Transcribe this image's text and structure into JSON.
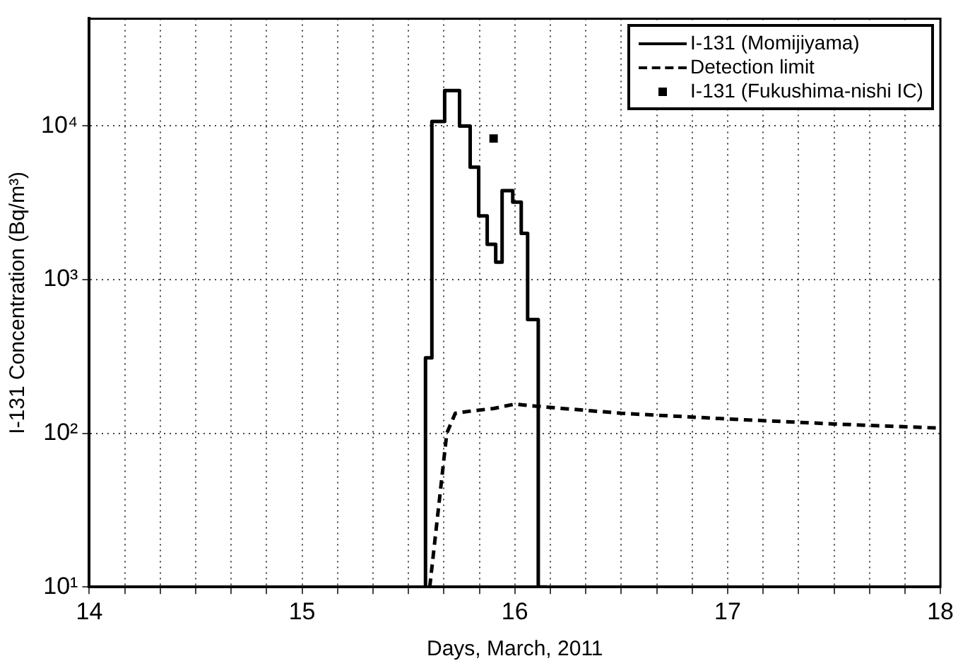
{
  "chart_data": {
    "type": "line",
    "xlabel": "Days, March, 2011",
    "ylabel": "I-131 Concentration (Bq/m³)",
    "log": "y",
    "grid": true,
    "legend": "top right",
    "xlim": [
      14,
      18
    ],
    "xticks": [
      14,
      {
        "value": 14.1667,
        "label": null
      },
      {
        "value": 14.3333,
        "label": null
      },
      {
        "value": 14.5,
        "label": null
      },
      {
        "value": 14.6667,
        "label": null
      },
      {
        "value": 14.8333,
        "label": null
      },
      15,
      {
        "value": 15.1667,
        "label": null
      },
      {
        "value": 15.3333,
        "label": null
      },
      {
        "value": 15.5,
        "label": null
      },
      {
        "value": 15.6667,
        "label": null
      },
      {
        "value": 15.8333,
        "label": null
      },
      16,
      {
        "value": 16.1667,
        "label": null
      },
      {
        "value": 16.3333,
        "label": null
      },
      {
        "value": 16.5,
        "label": null
      },
      {
        "value": 16.6667,
        "label": null
      },
      {
        "value": 16.8333,
        "label": null
      },
      17,
      {
        "value": 17.1667,
        "label": null
      },
      {
        "value": 17.3333,
        "label": null
      },
      {
        "value": 17.5,
        "label": null
      },
      {
        "value": 17.6667,
        "label": null
      },
      {
        "value": 17.8333,
        "label": null
      },
      18
    ],
    "ylim": [
      10,
      50000
    ],
    "yticks": [
      {
        "value": 10,
        "label": "10¹"
      },
      {
        "value": 100,
        "label": "10²"
      },
      {
        "value": 1000,
        "label": "10³"
      },
      {
        "value": 10000,
        "label": "10⁴"
      }
    ],
    "series": [
      {
        "name": "I-131 (Momijiyama)",
        "type": "step",
        "color": "#000000",
        "line_style": "solid",
        "marker": "none",
        "x": [
          15.58,
          15.61,
          15.67,
          15.74,
          15.79,
          15.83,
          15.87,
          15.91,
          15.94,
          15.99,
          16.03,
          16.06,
          16.11,
          16.15
        ],
        "values": [
          10,
          310,
          10700,
          17000,
          10000,
          5400,
          2600,
          1700,
          1300,
          3800,
          3200,
          2000,
          550,
          10
        ]
      },
      {
        "name": "Detection limit",
        "type": "line",
        "color": "#000000",
        "line_style": "dashed",
        "marker": "none",
        "x": [
          15.6,
          15.68,
          15.72,
          15.8,
          15.9,
          16.0,
          16.1,
          16.5,
          17.0,
          17.5,
          18.0
        ],
        "values": [
          10,
          100,
          135,
          140,
          145,
          155,
          150,
          135,
          124,
          115,
          108
        ]
      },
      {
        "name": "I-131 (Fukushima-nishi IC)",
        "type": "scatter",
        "color": "#000000",
        "marker": "square",
        "x": [
          15.9
        ],
        "values": [
          8300
        ]
      }
    ]
  }
}
